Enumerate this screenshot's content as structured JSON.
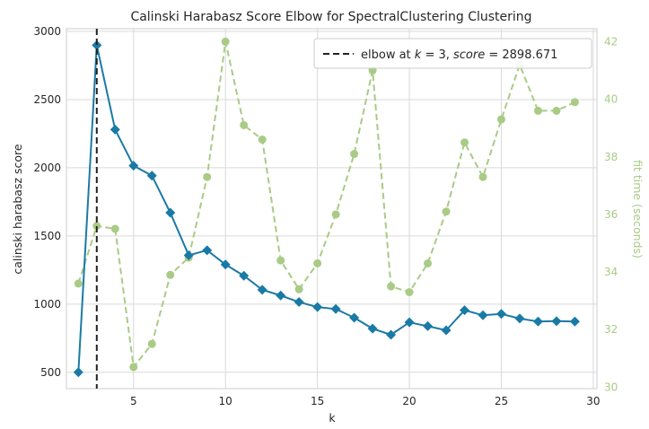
{
  "chart_data": {
    "type": "line",
    "title": "Calinski Harabasz Score Elbow for SpectralClustering Clustering",
    "xlabel": "k",
    "ylabel": "calinski harabasz score",
    "y2label": "fit time (seconds)",
    "xlim": [
      1.35,
      30.2
    ],
    "ylim": [
      380,
      3020
    ],
    "y2lim": [
      29.95,
      42.45
    ],
    "xticks": [
      5,
      10,
      15,
      20,
      25,
      30
    ],
    "yticks": [
      500,
      1000,
      1500,
      2000,
      2500,
      3000
    ],
    "y2ticks": [
      30,
      32,
      34,
      36,
      38,
      40,
      42
    ],
    "grid": true,
    "legend": {
      "position": "top-right",
      "label_prefix": "elbow at ",
      "k_symbol": "k",
      "score_symbol": "score",
      "label_mid": " = 3, ",
      "label_value": " = 2898.671"
    },
    "elbow": {
      "k": 3,
      "score": 2898.671
    },
    "x": [
      2,
      3,
      4,
      5,
      6,
      7,
      8,
      9,
      10,
      11,
      12,
      13,
      14,
      15,
      16,
      17,
      18,
      19,
      20,
      21,
      22,
      23,
      24,
      25,
      26,
      27,
      28,
      29
    ],
    "series": [
      {
        "name": "score",
        "axis": "left",
        "color": "#1a7aa6",
        "marker": "diamond",
        "values": [
          500,
          2898.671,
          2280,
          2015,
          1942,
          1670,
          1358,
          1395,
          1290,
          1208,
          1105,
          1063,
          1015,
          978,
          964,
          900,
          820,
          775,
          866,
          838,
          808,
          955,
          918,
          928,
          894,
          872,
          875,
          872
        ]
      },
      {
        "name": "fit time",
        "axis": "right",
        "color": "#a9cb86",
        "marker": "circle",
        "values": [
          33.6,
          35.6,
          35.5,
          30.7,
          31.5,
          33.9,
          34.5,
          37.3,
          42.0,
          39.1,
          38.6,
          34.4,
          33.4,
          34.3,
          36.0,
          38.1,
          41.0,
          33.5,
          33.3,
          34.3,
          36.1,
          38.5,
          37.3,
          39.3,
          41.2,
          39.6,
          39.6,
          39.9
        ]
      }
    ]
  }
}
